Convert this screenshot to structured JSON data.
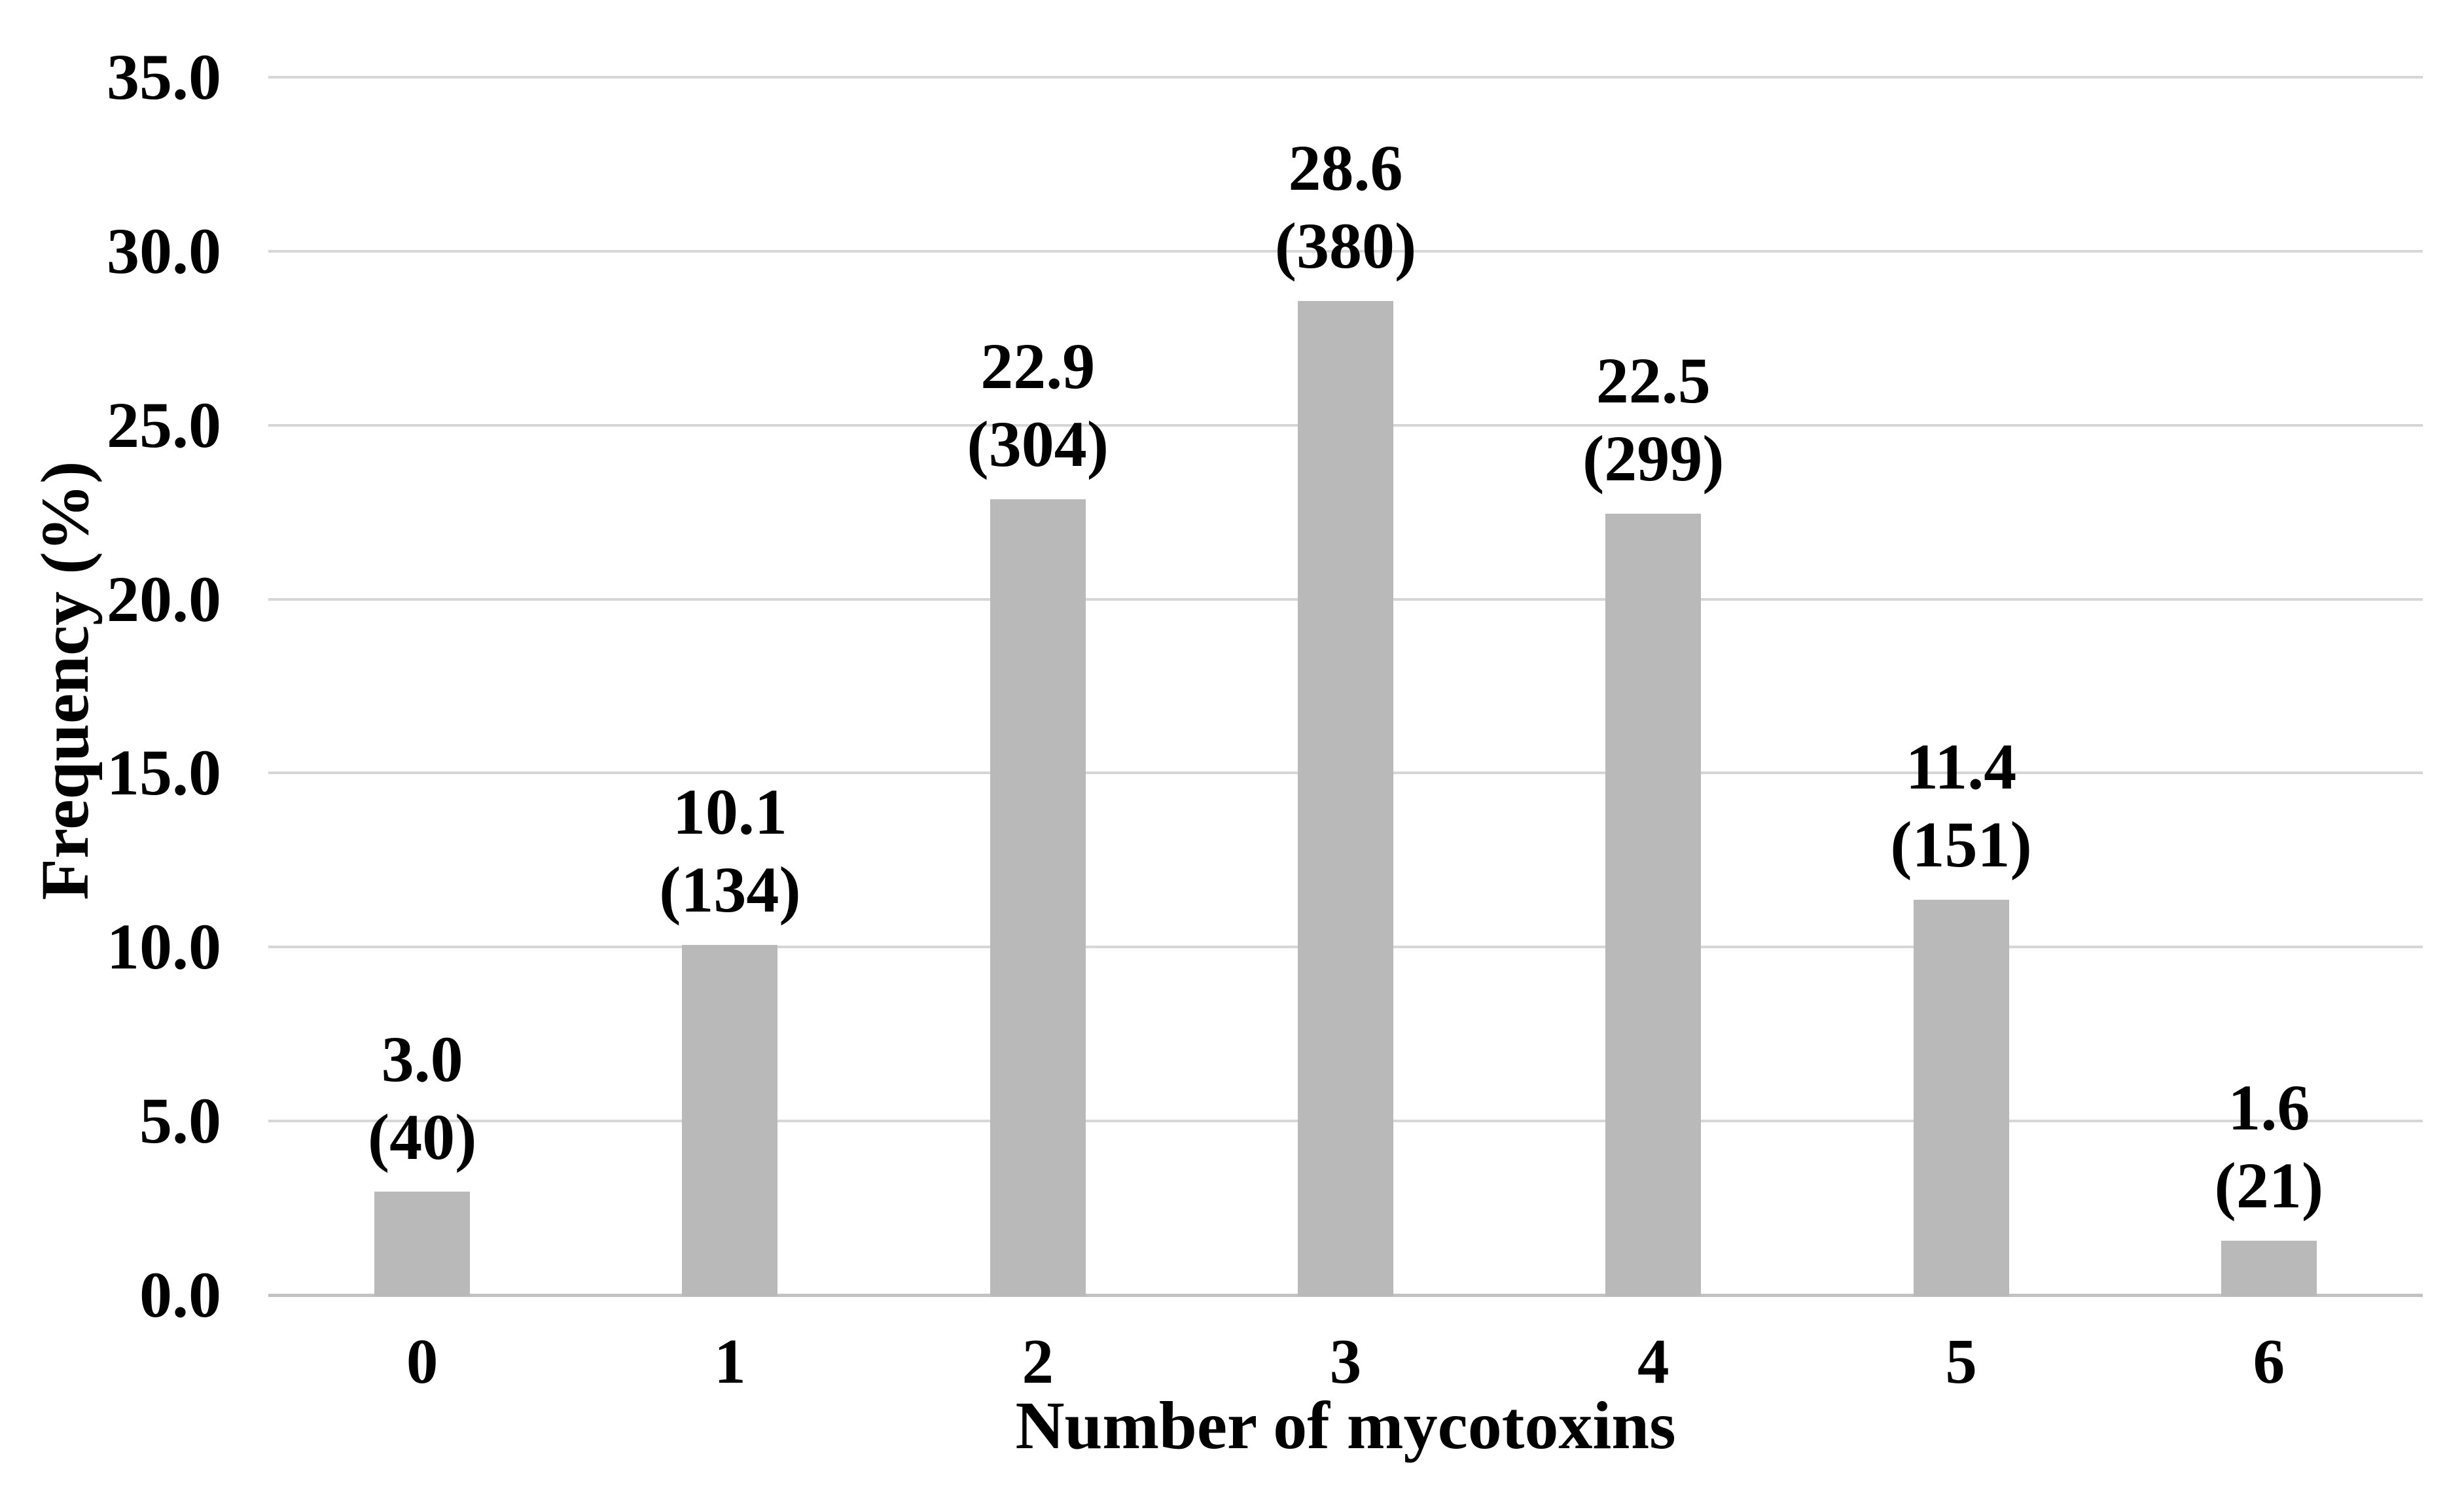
{
  "figure": {
    "background": "#ffffff",
    "text_color": "#000000"
  },
  "chart_data": {
    "type": "bar",
    "title": "",
    "xlabel": "Number of mycotoxins",
    "ylabel": "Frequency (%)",
    "categories": [
      "0",
      "1",
      "2",
      "3",
      "4",
      "5",
      "6"
    ],
    "values": [
      3.0,
      10.1,
      22.9,
      28.6,
      22.5,
      11.4,
      1.6
    ],
    "counts": [
      40,
      134,
      304,
      380,
      299,
      151,
      21
    ],
    "value_labels": [
      "3.0",
      "10.1",
      "22.9",
      "28.6",
      "22.5",
      "11.4",
      "1.6"
    ],
    "count_labels": [
      "(40)",
      "(134)",
      "(304)",
      "(380)",
      "(299)",
      "(151)",
      "(21)"
    ],
    "yticks": [
      "35.0",
      "30.0",
      "25.0",
      "20.0",
      "15.0",
      "10.0",
      "5.0",
      "0.0"
    ],
    "ytick_values": [
      35,
      30,
      25,
      20,
      15,
      10,
      5,
      0
    ],
    "ylim": [
      0,
      35
    ],
    "grid": "horizontal",
    "legend": "none",
    "bar_color": "#b9b9b9",
    "gridline_color": "#d6d6d6",
    "axis_line_color": "#c2c2c2"
  }
}
